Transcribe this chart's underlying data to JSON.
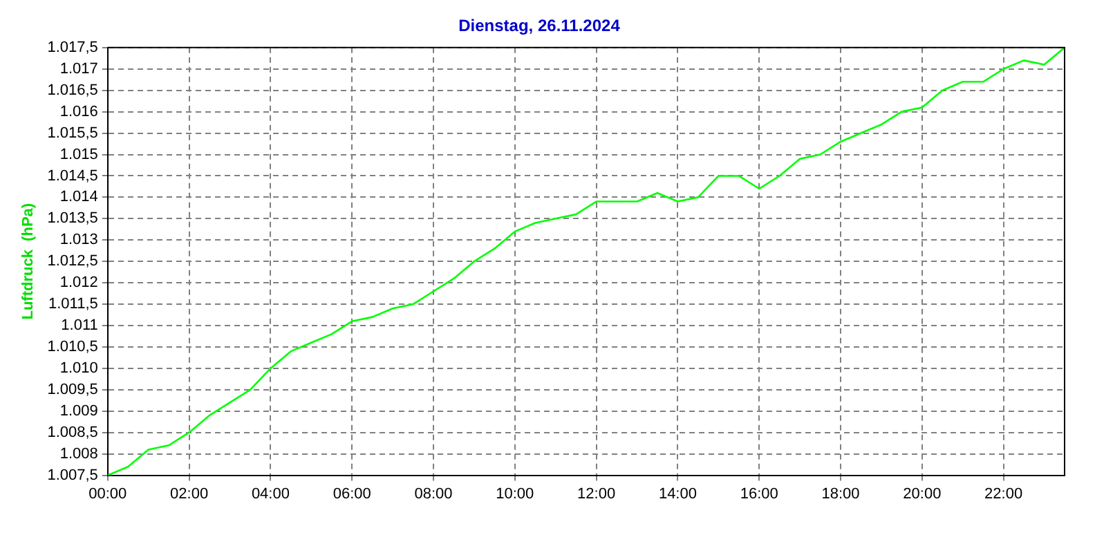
{
  "chart_data": {
    "type": "line",
    "title": "Dienstag, 26.11.2024",
    "ylabel": "Luftdruck  (hPa)",
    "grid": true,
    "legend": false,
    "marker": "none",
    "line_style": "solid",
    "x": [
      0,
      0.5,
      1,
      1.5,
      2,
      2.5,
      3,
      3.5,
      4,
      4.5,
      5,
      5.5,
      6,
      6.5,
      7,
      7.5,
      8,
      8.5,
      9,
      9.5,
      10,
      10.5,
      11,
      11.5,
      12,
      13,
      13.5,
      14,
      14.5,
      15,
      15.5,
      16,
      16.5,
      17,
      17.5,
      18,
      18.5,
      19,
      19.5,
      20,
      20.5,
      21,
      21.5,
      22,
      22.5,
      23,
      23.5
    ],
    "series": [
      {
        "color": "#00ff00",
        "values": [
          1007.5,
          1007.7,
          1008.1,
          1008.2,
          1008.5,
          1008.9,
          1009.2,
          1009.5,
          1010.0,
          1010.4,
          1010.6,
          1010.8,
          1011.1,
          1011.2,
          1011.4,
          1011.5,
          1011.8,
          1012.1,
          1012.5,
          1012.8,
          1013.2,
          1013.4,
          1013.5,
          1013.6,
          1013.9,
          1013.9,
          1014.1,
          1013.9,
          1014.0,
          1014.5,
          1014.5,
          1014.2,
          1014.5,
          1014.9,
          1015.0,
          1015.3,
          1015.5,
          1015.7,
          1016.0,
          1016.1,
          1016.5,
          1016.7,
          1016.7,
          1017.0,
          1017.2,
          1017.1,
          1017.5
        ]
      }
    ],
    "xlim": [
      0,
      23.5
    ],
    "xticks": [
      {
        "value": 0,
        "label": "00:00"
      },
      {
        "value": 2,
        "label": "02:00"
      },
      {
        "value": 4,
        "label": "04:00"
      },
      {
        "value": 6,
        "label": "06:00"
      },
      {
        "value": 8,
        "label": "08:00"
      },
      {
        "value": 10,
        "label": "10:00"
      },
      {
        "value": 12,
        "label": "12:00"
      },
      {
        "value": 14,
        "label": "14:00"
      },
      {
        "value": 16,
        "label": "16:00"
      },
      {
        "value": 18,
        "label": "18:00"
      },
      {
        "value": 20,
        "label": "20:00"
      },
      {
        "value": 22,
        "label": "22:00"
      }
    ],
    "ylim": [
      1007.5,
      1017.5
    ],
    "yticks": [
      {
        "value": 1007.5,
        "label": "1.007,5"
      },
      {
        "value": 1008,
        "label": "1.008"
      },
      {
        "value": 1008.5,
        "label": "1.008,5"
      },
      {
        "value": 1009,
        "label": "1.009"
      },
      {
        "value": 1009.5,
        "label": "1.009,5"
      },
      {
        "value": 1010,
        "label": "1.010"
      },
      {
        "value": 1010.5,
        "label": "1.010,5"
      },
      {
        "value": 1011,
        "label": "1.011"
      },
      {
        "value": 1011.5,
        "label": "1.011,5"
      },
      {
        "value": 1012,
        "label": "1.012"
      },
      {
        "value": 1012.5,
        "label": "1.012,5"
      },
      {
        "value": 1013,
        "label": "1.013"
      },
      {
        "value": 1013.5,
        "label": "1.013,5"
      },
      {
        "value": 1014,
        "label": "1.014"
      },
      {
        "value": 1014.5,
        "label": "1.014,5"
      },
      {
        "value": 1015,
        "label": "1.015"
      },
      {
        "value": 1015.5,
        "label": "1.015,5"
      },
      {
        "value": 1016,
        "label": "1.016"
      },
      {
        "value": 1016.5,
        "label": "1.016,5"
      },
      {
        "value": 1017,
        "label": "1.017"
      },
      {
        "value": 1017.5,
        "label": "1.017,5"
      }
    ]
  }
}
